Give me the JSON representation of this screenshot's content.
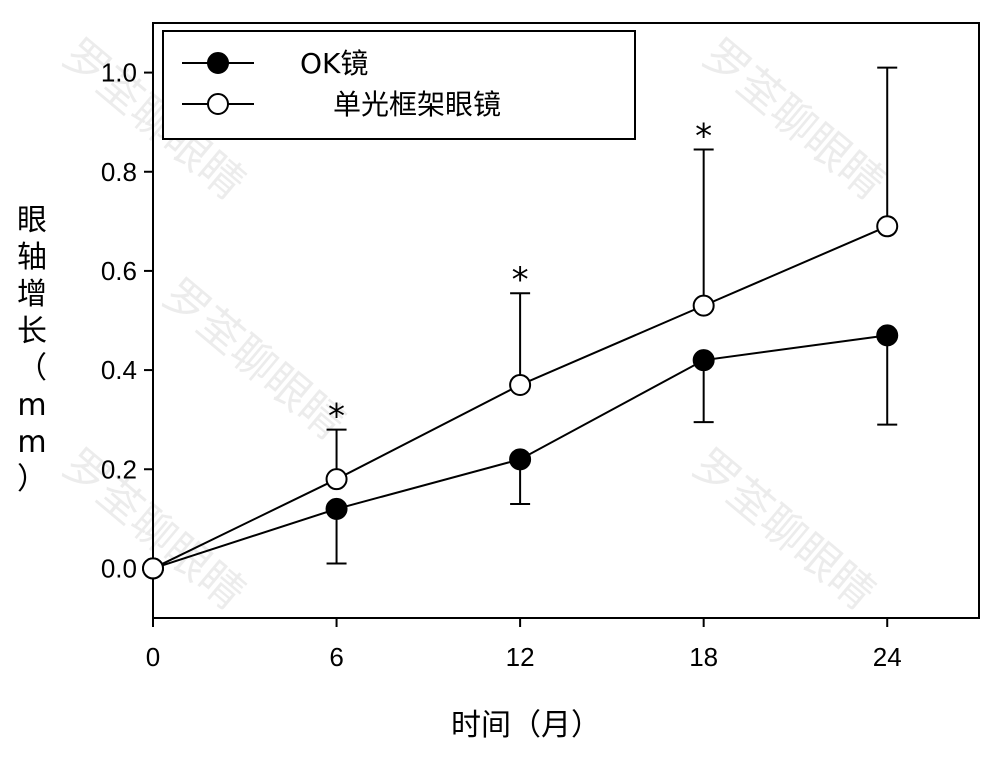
{
  "chart_data": {
    "type": "line",
    "x": [
      0,
      6,
      12,
      18,
      24
    ],
    "xlabel": "时间（月）",
    "ylabel": "眼轴增长（mm）",
    "ylim": [
      -0.1,
      1.1
    ],
    "xlim": [
      0,
      27
    ],
    "xticks": [
      "0",
      "6",
      "12",
      "18",
      "24"
    ],
    "yticks": [
      "0.0",
      "0.2",
      "0.4",
      "0.6",
      "0.8",
      "1.0"
    ],
    "legend_position": "top-left",
    "grid": false,
    "series": [
      {
        "name": "OK镜",
        "marker": "filled-circle",
        "color": "#000000",
        "values": [
          0.0,
          0.12,
          0.22,
          0.42,
          0.47
        ],
        "error_lower": [
          0.0,
          0.11,
          0.09,
          0.125,
          0.18
        ]
      },
      {
        "name": "单光框架眼镜",
        "marker": "open-circle",
        "color": "#000000",
        "values": [
          0.0,
          0.18,
          0.37,
          0.53,
          0.69
        ],
        "error_upper": [
          0.0,
          0.1,
          0.185,
          0.315,
          0.32
        ]
      }
    ],
    "annotations": [
      {
        "text": "*",
        "x": 6
      },
      {
        "text": "*",
        "x": 12
      },
      {
        "text": "*",
        "x": 18
      }
    ],
    "watermark": "罗荃聊眼睛"
  }
}
